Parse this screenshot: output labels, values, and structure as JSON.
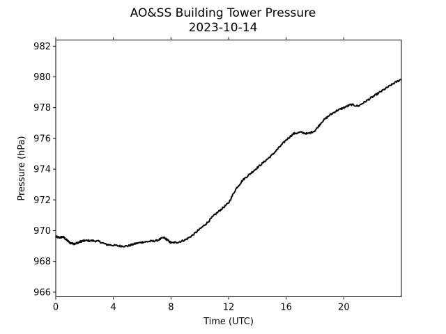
{
  "chart_data": {
    "type": "line",
    "title": "AO&SS Building Tower Pressure",
    "subtitle": "2023-10-14",
    "xlabel": "Time (UTC)",
    "ylabel": "Pressure (hPa)",
    "xlim": [
      0,
      24
    ],
    "ylim": [
      965.7,
      982.4
    ],
    "xticks": [
      0,
      4,
      8,
      12,
      16,
      20
    ],
    "xtick_labels": [
      "0",
      "4",
      "8",
      "12",
      "16",
      "20"
    ],
    "yticks": [
      966,
      968,
      970,
      972,
      974,
      976,
      978,
      980,
      982
    ],
    "ytick_labels": [
      "966",
      "968",
      "970",
      "972",
      "974",
      "976",
      "978",
      "980",
      "982"
    ],
    "grid": false,
    "line_color": "#000000",
    "series": [
      {
        "x": [
          0,
          0.25,
          0.5,
          0.75,
          1.0,
          1.25,
          1.5,
          1.75,
          2.0,
          2.5,
          3.0,
          3.5,
          4.0,
          4.5,
          5.0,
          5.5,
          6.0,
          6.5,
          7.0,
          7.5,
          7.75,
          8.0,
          8.5,
          9.0,
          9.5,
          10.0,
          10.5,
          11.0,
          11.5,
          12.0,
          12.5,
          13.0,
          13.5,
          14.0,
          14.5,
          15.0,
          15.5,
          16.0,
          16.5,
          17.0,
          17.5,
          18.0,
          18.5,
          19.0,
          19.5,
          20.0,
          20.5,
          21.0,
          21.5,
          22.0,
          22.5,
          23.0,
          23.5,
          24.0
        ],
        "values": [
          969.6,
          969.55,
          969.6,
          969.4,
          969.2,
          969.15,
          969.2,
          969.3,
          969.35,
          969.35,
          969.3,
          969.1,
          969.05,
          969.0,
          969.0,
          969.15,
          969.25,
          969.3,
          969.35,
          969.55,
          969.4,
          969.2,
          969.25,
          969.4,
          969.7,
          970.1,
          970.5,
          971.0,
          971.4,
          971.8,
          972.7,
          973.3,
          973.7,
          974.1,
          974.5,
          974.9,
          975.4,
          975.9,
          976.3,
          976.4,
          976.3,
          976.5,
          977.1,
          977.5,
          977.8,
          978.0,
          978.2,
          978.1,
          978.4,
          978.7,
          979.0,
          979.3,
          979.6,
          979.85
        ]
      }
    ]
  }
}
